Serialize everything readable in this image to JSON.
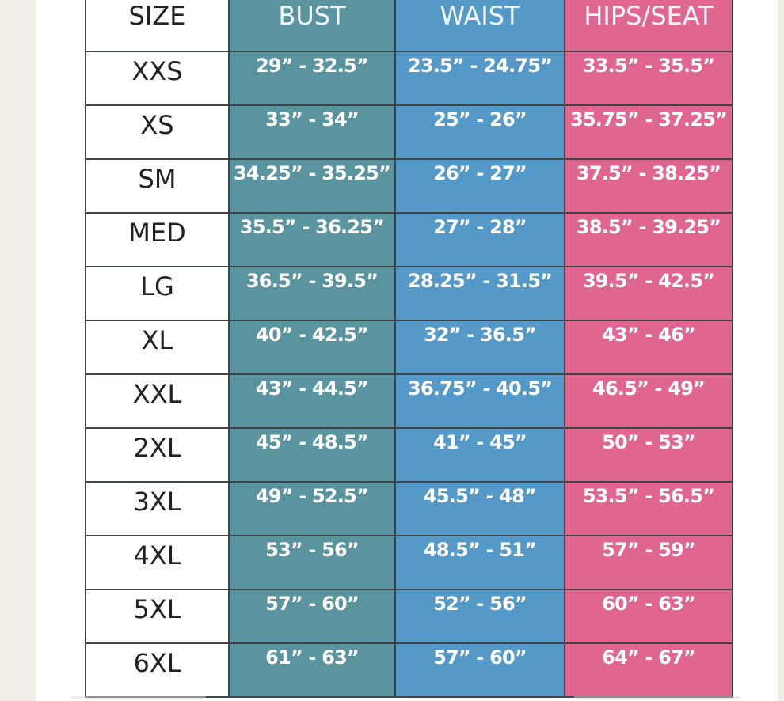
{
  "headers": {
    "size": "SIZE",
    "bust": "BUST",
    "waist": "WAIST",
    "hips": "HIPS/SEAT"
  },
  "colors": {
    "bust": "#5a949e",
    "waist": "#5499c7",
    "hips": "#e06690"
  },
  "rows": [
    {
      "size": "XXS",
      "bust": "29” - 32.5”",
      "waist": "23.5” - 24.75”",
      "hips": "33.5” - 35.5”"
    },
    {
      "size": "XS",
      "bust": "33” - 34”",
      "waist": "25” - 26”",
      "hips": "35.75” - 37.25”"
    },
    {
      "size": "SM",
      "bust": "34.25” - 35.25”",
      "waist": "26” - 27”",
      "hips": "37.5” - 38.25”"
    },
    {
      "size": "MED",
      "bust": "35.5” - 36.25”",
      "waist": "27” - 28”",
      "hips": "38.5” - 39.25”"
    },
    {
      "size": "LG",
      "bust": "36.5” - 39.5”",
      "waist": "28.25” - 31.5”",
      "hips": "39.5” - 42.5”"
    },
    {
      "size": "XL",
      "bust": "40” - 42.5”",
      "waist": "32” - 36.5”",
      "hips": "43” - 46”"
    },
    {
      "size": "XXL",
      "bust": "43” - 44.5”",
      "waist": "36.75” - 40.5”",
      "hips": "46.5” - 49”"
    },
    {
      "size": "2XL",
      "bust": "45” - 48.5”",
      "waist": "41” - 45”",
      "hips": "50” - 53”"
    },
    {
      "size": "3XL",
      "bust": "49” - 52.5”",
      "waist": "45.5” - 48”",
      "hips": "53.5” - 56.5”"
    },
    {
      "size": "4XL",
      "bust": "53” - 56”",
      "waist": "48.5” - 51”",
      "hips": "57” - 59”"
    },
    {
      "size": "5XL",
      "bust": "57” - 60”",
      "waist": "52” - 56”",
      "hips": "60” - 63”"
    },
    {
      "size": "6XL",
      "bust": "61” - 63”",
      "waist": "57” - 60”",
      "hips": "64” - 67”"
    }
  ]
}
